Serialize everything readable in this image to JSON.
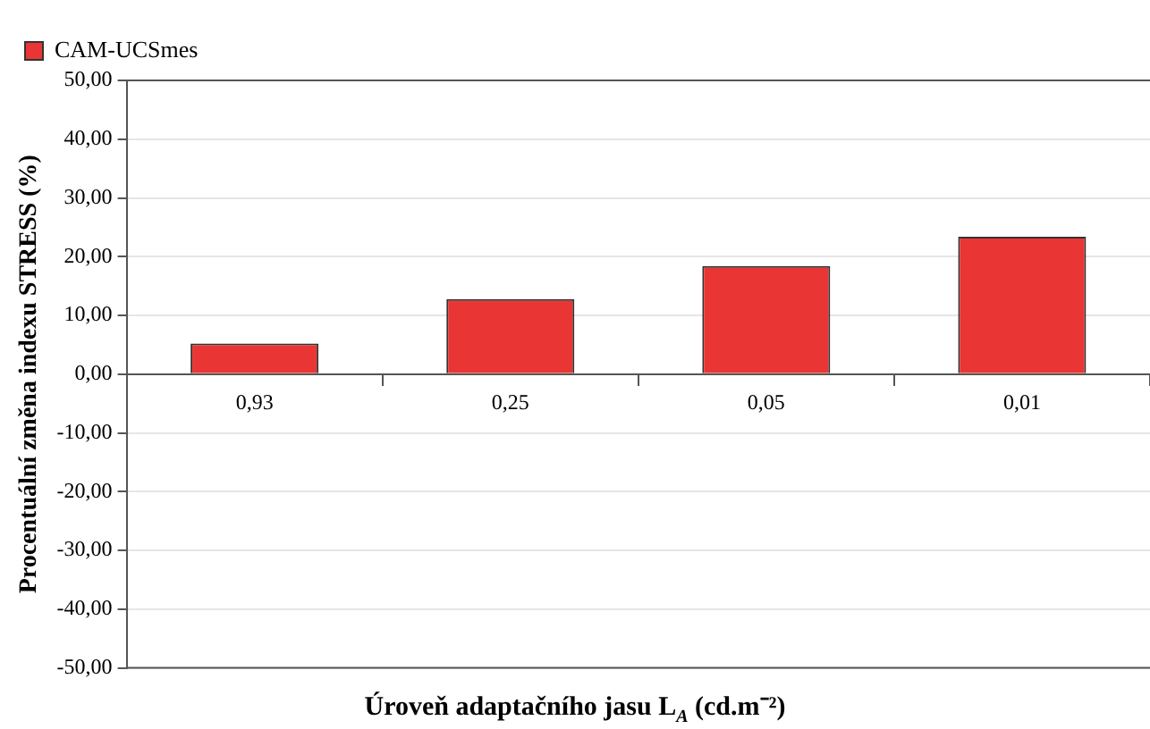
{
  "chart_data": {
    "type": "bar",
    "xlabel": "Úroveň adaptačního jasu L$_{A}$ (cd.m⁻²)",
    "ylabel": "Procentuální změna indexu STRESS (%)",
    "categories": [
      "0,93",
      "0,25",
      "0,05",
      "0,01"
    ],
    "series": [
      {
        "name": "CAM-UCSmes",
        "color": "#e93634",
        "values": [
          5.2,
          12.8,
          18.4,
          23.4
        ]
      }
    ],
    "ylim": [
      -50,
      50
    ],
    "yticks": [
      {
        "value": -50,
        "label": "-50,00"
      },
      {
        "value": -40,
        "label": "-40,00"
      },
      {
        "value": -30,
        "label": "-30,00"
      },
      {
        "value": -20,
        "label": "-20,00"
      },
      {
        "value": -10,
        "label": "-10,00"
      },
      {
        "value": 0,
        "label": "0,00"
      },
      {
        "value": 10,
        "label": "10,00"
      },
      {
        "value": 20,
        "label": "20,00"
      },
      {
        "value": 30,
        "label": "30,00"
      },
      {
        "value": 40,
        "label": "40,00"
      },
      {
        "value": 50,
        "label": "50,00"
      }
    ],
    "grid": "y",
    "legend": "top left"
  }
}
